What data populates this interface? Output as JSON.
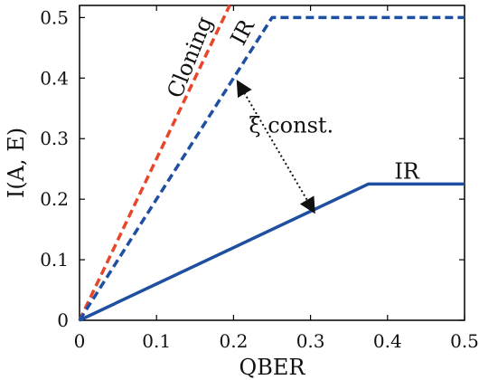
{
  "chart_data": {
    "type": "line",
    "title": "",
    "xlabel": "QBER",
    "ylabel": "I(A, E)",
    "xlim": [
      0,
      0.5
    ],
    "ylim": [
      0,
      0.52
    ],
    "grid": false,
    "xticks": [
      "0",
      "0.1",
      "0.2",
      "0.3",
      "0.4",
      "0.5"
    ],
    "yticks": [
      "0",
      "0.1",
      "0.2",
      "0.3",
      "0.4",
      "0.5"
    ],
    "series": [
      {
        "name": "Cloning",
        "style": "dashed",
        "color": "#e8462a",
        "points": [
          [
            0,
            0
          ],
          [
            0.195,
            0.52
          ]
        ]
      },
      {
        "name": "IR",
        "style": "dashed",
        "color": "#1f4fa0",
        "points": [
          [
            0,
            0
          ],
          [
            0.25,
            0.5
          ],
          [
            0.5,
            0.5
          ]
        ]
      },
      {
        "name": "IR",
        "style": "solid",
        "color": "#1f4fa0",
        "points": [
          [
            0,
            0
          ],
          [
            0.375,
            0.225
          ],
          [
            0.5,
            0.225
          ]
        ]
      }
    ],
    "annotations": [
      {
        "text": "Cloning",
        "x": 0.152,
        "y": 0.43
      },
      {
        "text": "IR",
        "x": 0.22,
        "y": 0.47
      },
      {
        "text": "IR",
        "x": 0.425,
        "y": 0.234
      },
      {
        "text": "ξ const.",
        "x": 0.275,
        "y": 0.31
      }
    ],
    "arrow": {
      "from": [
        0.205,
        0.395
      ],
      "to": [
        0.305,
        0.178
      ],
      "style": "dotted",
      "color": "#111111"
    }
  }
}
